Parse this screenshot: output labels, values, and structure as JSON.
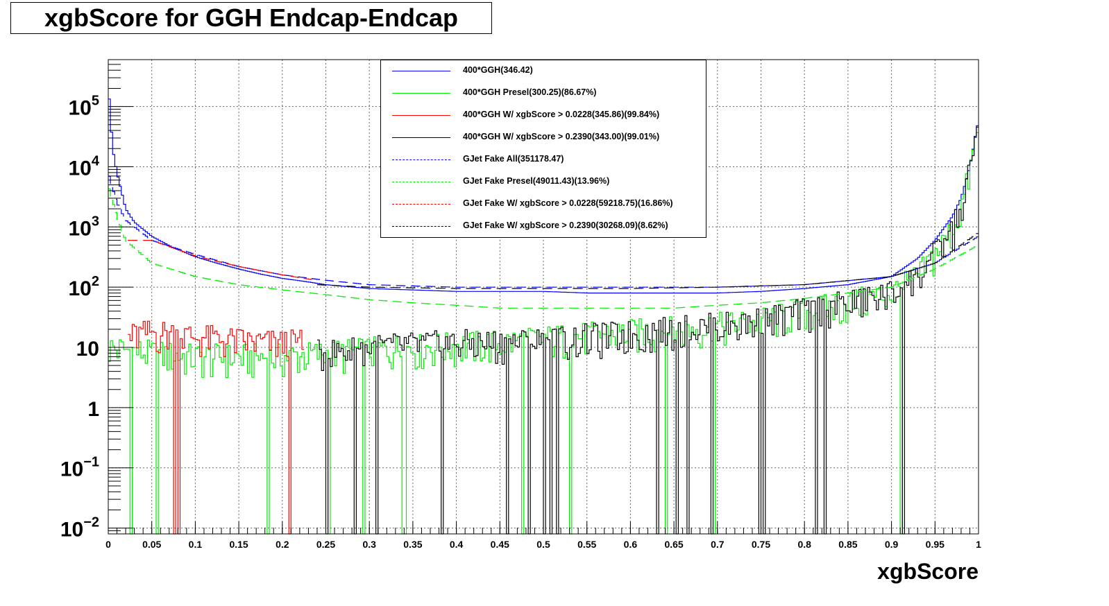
{
  "chart_data": {
    "type": "line",
    "title": "xgbScore for GGH Endcap-Endcap",
    "xlabel": "xgbScore",
    "ylabel": "",
    "xlim": [
      0,
      1
    ],
    "ylim": [
      0.008,
      600000
    ],
    "y_scale": "log",
    "grid": true,
    "legend_position": "top-center",
    "x_ticks": [
      "0",
      "0.05",
      "0.1",
      "0.15",
      "0.2",
      "0.25",
      "0.3",
      "0.35",
      "0.4",
      "0.45",
      "0.5",
      "0.55",
      "0.6",
      "0.65",
      "0.7",
      "0.75",
      "0.8",
      "0.85",
      "0.9",
      "0.95",
      "1"
    ],
    "y_ticks": [
      {
        "base": "10",
        "exp": "−2",
        "value": 0.01
      },
      {
        "base": "10",
        "exp": "−1",
        "value": 0.1
      },
      {
        "base": "1",
        "exp": "",
        "value": 1
      },
      {
        "base": "10",
        "exp": "",
        "value": 10
      },
      {
        "base": "10",
        "exp": "2",
        "value": 100
      },
      {
        "base": "10",
        "exp": "3",
        "value": 1000
      },
      {
        "base": "10",
        "exp": "4",
        "value": 10000
      },
      {
        "base": "10",
        "exp": "5",
        "value": 100000
      }
    ],
    "series": [
      {
        "name": "400*GGH(346.42)",
        "color": "#0000ff",
        "style": "solid",
        "points": [
          [
            0,
            250000
          ],
          [
            0.005,
            20000
          ],
          [
            0.01,
            8000
          ],
          [
            0.02,
            2000
          ],
          [
            0.03,
            1200
          ],
          [
            0.05,
            700
          ],
          [
            0.075,
            450
          ],
          [
            0.1,
            320
          ],
          [
            0.125,
            250
          ],
          [
            0.15,
            200
          ],
          [
            0.175,
            165
          ],
          [
            0.2,
            140
          ],
          [
            0.225,
            125
          ],
          [
            0.25,
            110
          ],
          [
            0.3,
            95
          ],
          [
            0.35,
            90
          ],
          [
            0.4,
            85
          ],
          [
            0.45,
            85
          ],
          [
            0.5,
            85
          ],
          [
            0.55,
            80
          ],
          [
            0.6,
            80
          ],
          [
            0.65,
            80
          ],
          [
            0.7,
            80
          ],
          [
            0.75,
            85
          ],
          [
            0.8,
            95
          ],
          [
            0.85,
            110
          ],
          [
            0.9,
            150
          ],
          [
            0.93,
            300
          ],
          [
            0.95,
            600
          ],
          [
            0.97,
            1500
          ],
          [
            0.98,
            3000
          ],
          [
            0.99,
            10000
          ],
          [
            1.0,
            60000
          ]
        ]
      },
      {
        "name": "400*GGH Presel(300.25)(86.67%)",
        "color": "#00ee00",
        "style": "solid",
        "points": [
          [
            0,
            10
          ],
          [
            0.05,
            8
          ],
          [
            0.1,
            7
          ],
          [
            0.15,
            7
          ],
          [
            0.2,
            7
          ],
          [
            0.25,
            8
          ],
          [
            0.3,
            9
          ],
          [
            0.35,
            10
          ],
          [
            0.4,
            11
          ],
          [
            0.45,
            12
          ],
          [
            0.5,
            14
          ],
          [
            0.55,
            16
          ],
          [
            0.6,
            18
          ],
          [
            0.65,
            20
          ],
          [
            0.7,
            23
          ],
          [
            0.75,
            28
          ],
          [
            0.8,
            40
          ],
          [
            0.85,
            55
          ],
          [
            0.9,
            80
          ],
          [
            0.93,
            150
          ],
          [
            0.95,
            350
          ],
          [
            0.97,
            900
          ],
          [
            0.98,
            2000
          ],
          [
            0.99,
            8000
          ],
          [
            1.0,
            50000
          ]
        ]
      },
      {
        "name": "400*GGH W/ xgbScore > 0.0228(345.86)(99.84%)",
        "color": "#ff0000",
        "style": "solid",
        "points": [
          [
            0.0228,
            15
          ],
          [
            0.05,
            18
          ],
          [
            0.075,
            17
          ],
          [
            0.1,
            15
          ],
          [
            0.125,
            14
          ],
          [
            0.15,
            13
          ],
          [
            0.175,
            12
          ],
          [
            0.2,
            12
          ],
          [
            0.225,
            12
          ]
        ]
      },
      {
        "name": "400*GGH W/ xgbScore > 0.2390(343.00)(99.01%)",
        "color": "#000000",
        "style": "solid",
        "points": [
          [
            0.239,
            8
          ],
          [
            0.275,
            9
          ],
          [
            0.3,
            10
          ],
          [
            0.35,
            11
          ],
          [
            0.4,
            12
          ],
          [
            0.45,
            12
          ],
          [
            0.5,
            13
          ],
          [
            0.55,
            15
          ],
          [
            0.6,
            17
          ],
          [
            0.65,
            20
          ],
          [
            0.7,
            23
          ],
          [
            0.75,
            28
          ],
          [
            0.8,
            40
          ],
          [
            0.85,
            55
          ],
          [
            0.9,
            80
          ],
          [
            0.93,
            150
          ],
          [
            0.95,
            350
          ],
          [
            0.97,
            900
          ],
          [
            0.98,
            2000
          ],
          [
            0.99,
            8000
          ],
          [
            1.0,
            55000
          ]
        ]
      },
      {
        "name": "GJet Fake All(351178.47)",
        "color": "#0000ff",
        "style": "dashed",
        "points": [
          [
            0,
            8000
          ],
          [
            0.01,
            2500
          ],
          [
            0.02,
            1300
          ],
          [
            0.05,
            600
          ],
          [
            0.1,
            350
          ],
          [
            0.15,
            220
          ],
          [
            0.2,
            160
          ],
          [
            0.25,
            130
          ],
          [
            0.3,
            110
          ],
          [
            0.4,
            100
          ],
          [
            0.5,
            100
          ],
          [
            0.6,
            100
          ],
          [
            0.7,
            100
          ],
          [
            0.8,
            110
          ],
          [
            0.9,
            150
          ],
          [
            0.95,
            250
          ],
          [
            1.0,
            700
          ]
        ]
      },
      {
        "name": "GJet Fake Presel(49011.43)(13.96%)",
        "color": "#00ee00",
        "style": "dashed",
        "points": [
          [
            0,
            5000
          ],
          [
            0.01,
            1500
          ],
          [
            0.02,
            600
          ],
          [
            0.05,
            250
          ],
          [
            0.1,
            150
          ],
          [
            0.15,
            110
          ],
          [
            0.2,
            90
          ],
          [
            0.25,
            75
          ],
          [
            0.3,
            62
          ],
          [
            0.35,
            55
          ],
          [
            0.4,
            50
          ],
          [
            0.45,
            45
          ],
          [
            0.5,
            45
          ],
          [
            0.55,
            45
          ],
          [
            0.6,
            45
          ],
          [
            0.65,
            45
          ],
          [
            0.7,
            50
          ],
          [
            0.75,
            55
          ],
          [
            0.8,
            65
          ],
          [
            0.85,
            80
          ],
          [
            0.9,
            100
          ],
          [
            0.95,
            200
          ],
          [
            1.0,
            500
          ]
        ]
      },
      {
        "name": "GJet Fake W/ xgbScore > 0.0228(59218.75)(16.86%)",
        "color": "#ff0000",
        "style": "dashed",
        "points": [
          [
            0.0228,
            600
          ],
          [
            0.05,
            600
          ],
          [
            0.1,
            330
          ],
          [
            0.15,
            220
          ],
          [
            0.2,
            160
          ],
          [
            0.239,
            130
          ]
        ]
      },
      {
        "name": "GJet Fake W/ xgbScore > 0.2390(30268.09)(8.62%)",
        "color": "#000000",
        "style": "dashed",
        "points": [
          [
            0.239,
            110
          ],
          [
            0.3,
            100
          ],
          [
            0.4,
            95
          ],
          [
            0.5,
            95
          ],
          [
            0.6,
            95
          ],
          [
            0.7,
            100
          ],
          [
            0.8,
            110
          ],
          [
            0.9,
            150
          ],
          [
            0.95,
            250
          ],
          [
            1.0,
            800
          ]
        ]
      }
    ]
  }
}
